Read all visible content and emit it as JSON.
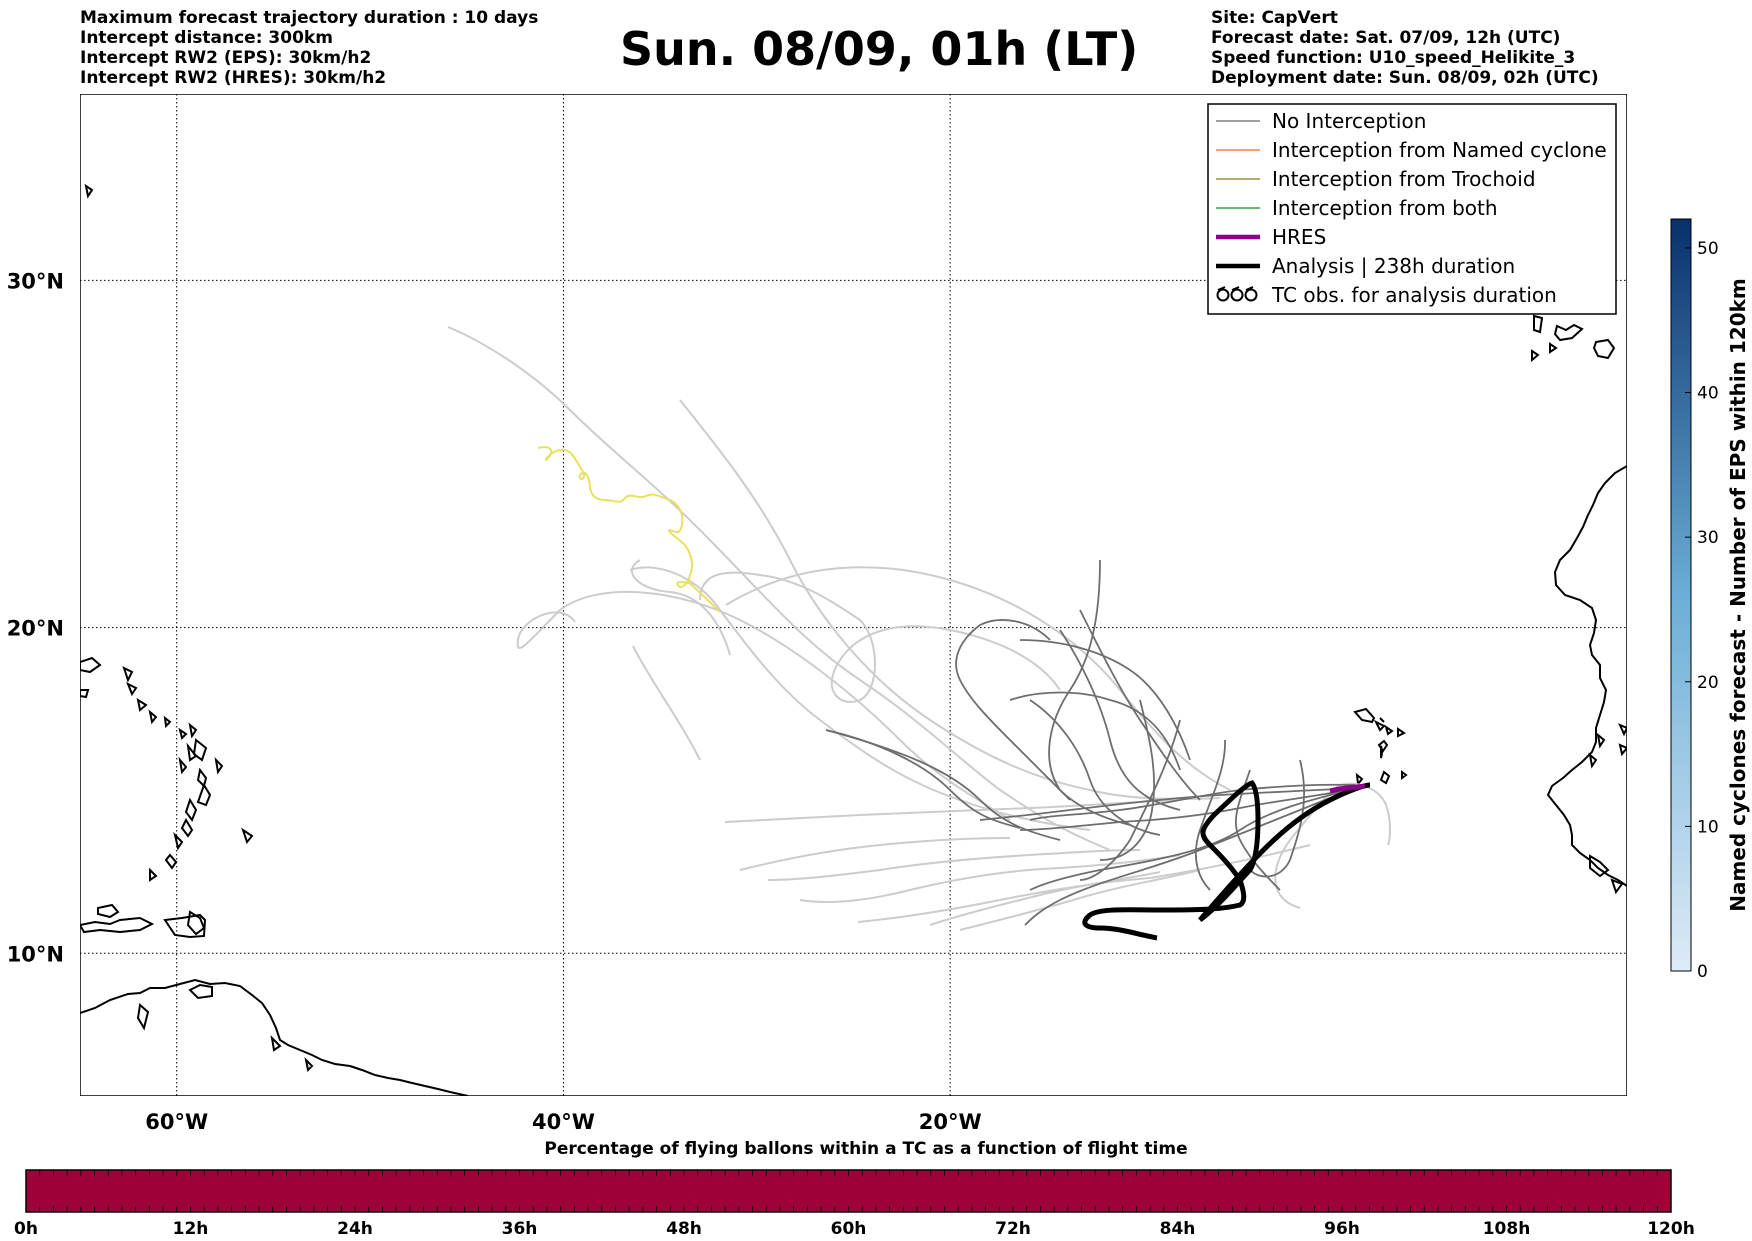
{
  "header_left": [
    "Maximum forecast trajectory duration : 10 days",
    "Intercept distance: 300km",
    "Intercept RW2 (EPS):  30km/h2",
    "Intercept RW2 (HRES): 30km/h2"
  ],
  "title": "Sun. 08/09, 01h (LT)",
  "header_right": [
    "Site: CapVert",
    "Forecast date: Sat. 07/09, 12h (UTC)",
    "Speed function: U10_speed_Helikite_3",
    "Deployment date: Sun. 08/09, 02h (UTC)"
  ],
  "map": {
    "lon_range": [
      -65,
      15
    ],
    "lat_range": [
      5.5,
      35
    ],
    "lon_ticks": [
      {
        "value": -60,
        "label": "60°W"
      },
      {
        "value": -40,
        "label": "40°W"
      },
      {
        "value": -20,
        "label": "20°W"
      }
    ],
    "lat_ticks": [
      {
        "value": 30,
        "label": "30°N"
      },
      {
        "value": 20,
        "label": "20°N"
      },
      {
        "value": 10,
        "label": "10°N"
      }
    ],
    "grid": "dotted",
    "colors": {
      "no_interception": "#808080",
      "named_cyclone": "#ff7f50",
      "trochoid": "#a08c3c",
      "both": "#3ca03c",
      "hres": "#8b008b",
      "analysis": "#000000",
      "light_track": "#cccccc",
      "yellow_track": "#e8e060"
    }
  },
  "legend": [
    {
      "label": "No Interception",
      "style": "thin",
      "color": "#808080"
    },
    {
      "label": "Interception from Named cyclone",
      "style": "thin",
      "color": "#ff7f50"
    },
    {
      "label": "Interception from Trochoid",
      "style": "thin",
      "color": "#a08c3c"
    },
    {
      "label": "Interception from both",
      "style": "thin",
      "color": "#3ca03c"
    },
    {
      "label": "HRES",
      "style": "thick",
      "color": "#8b008b"
    },
    {
      "label": "Analysis | 238h duration",
      "style": "thick",
      "color": "#000000"
    },
    {
      "label": "TC obs. for analysis duration",
      "style": "symbol",
      "color": "#000000"
    }
  ],
  "eps_colorbar": {
    "label": "Named cyclones forecast - Number of EPS within 120km",
    "min": 0,
    "max": 52,
    "ticks": [
      "0",
      "10",
      "20",
      "30",
      "40",
      "50"
    ],
    "color_low": "#deebf7",
    "color_high": "#08306b"
  },
  "hours_colorbar": {
    "title": "Percentage of flying ballons within a TC as a function of flight time",
    "ticks": [
      "0h",
      "12h",
      "24h",
      "36h",
      "48h",
      "60h",
      "72h",
      "84h",
      "96h",
      "108h",
      "120h"
    ],
    "fill_color": "#9e0039"
  }
}
